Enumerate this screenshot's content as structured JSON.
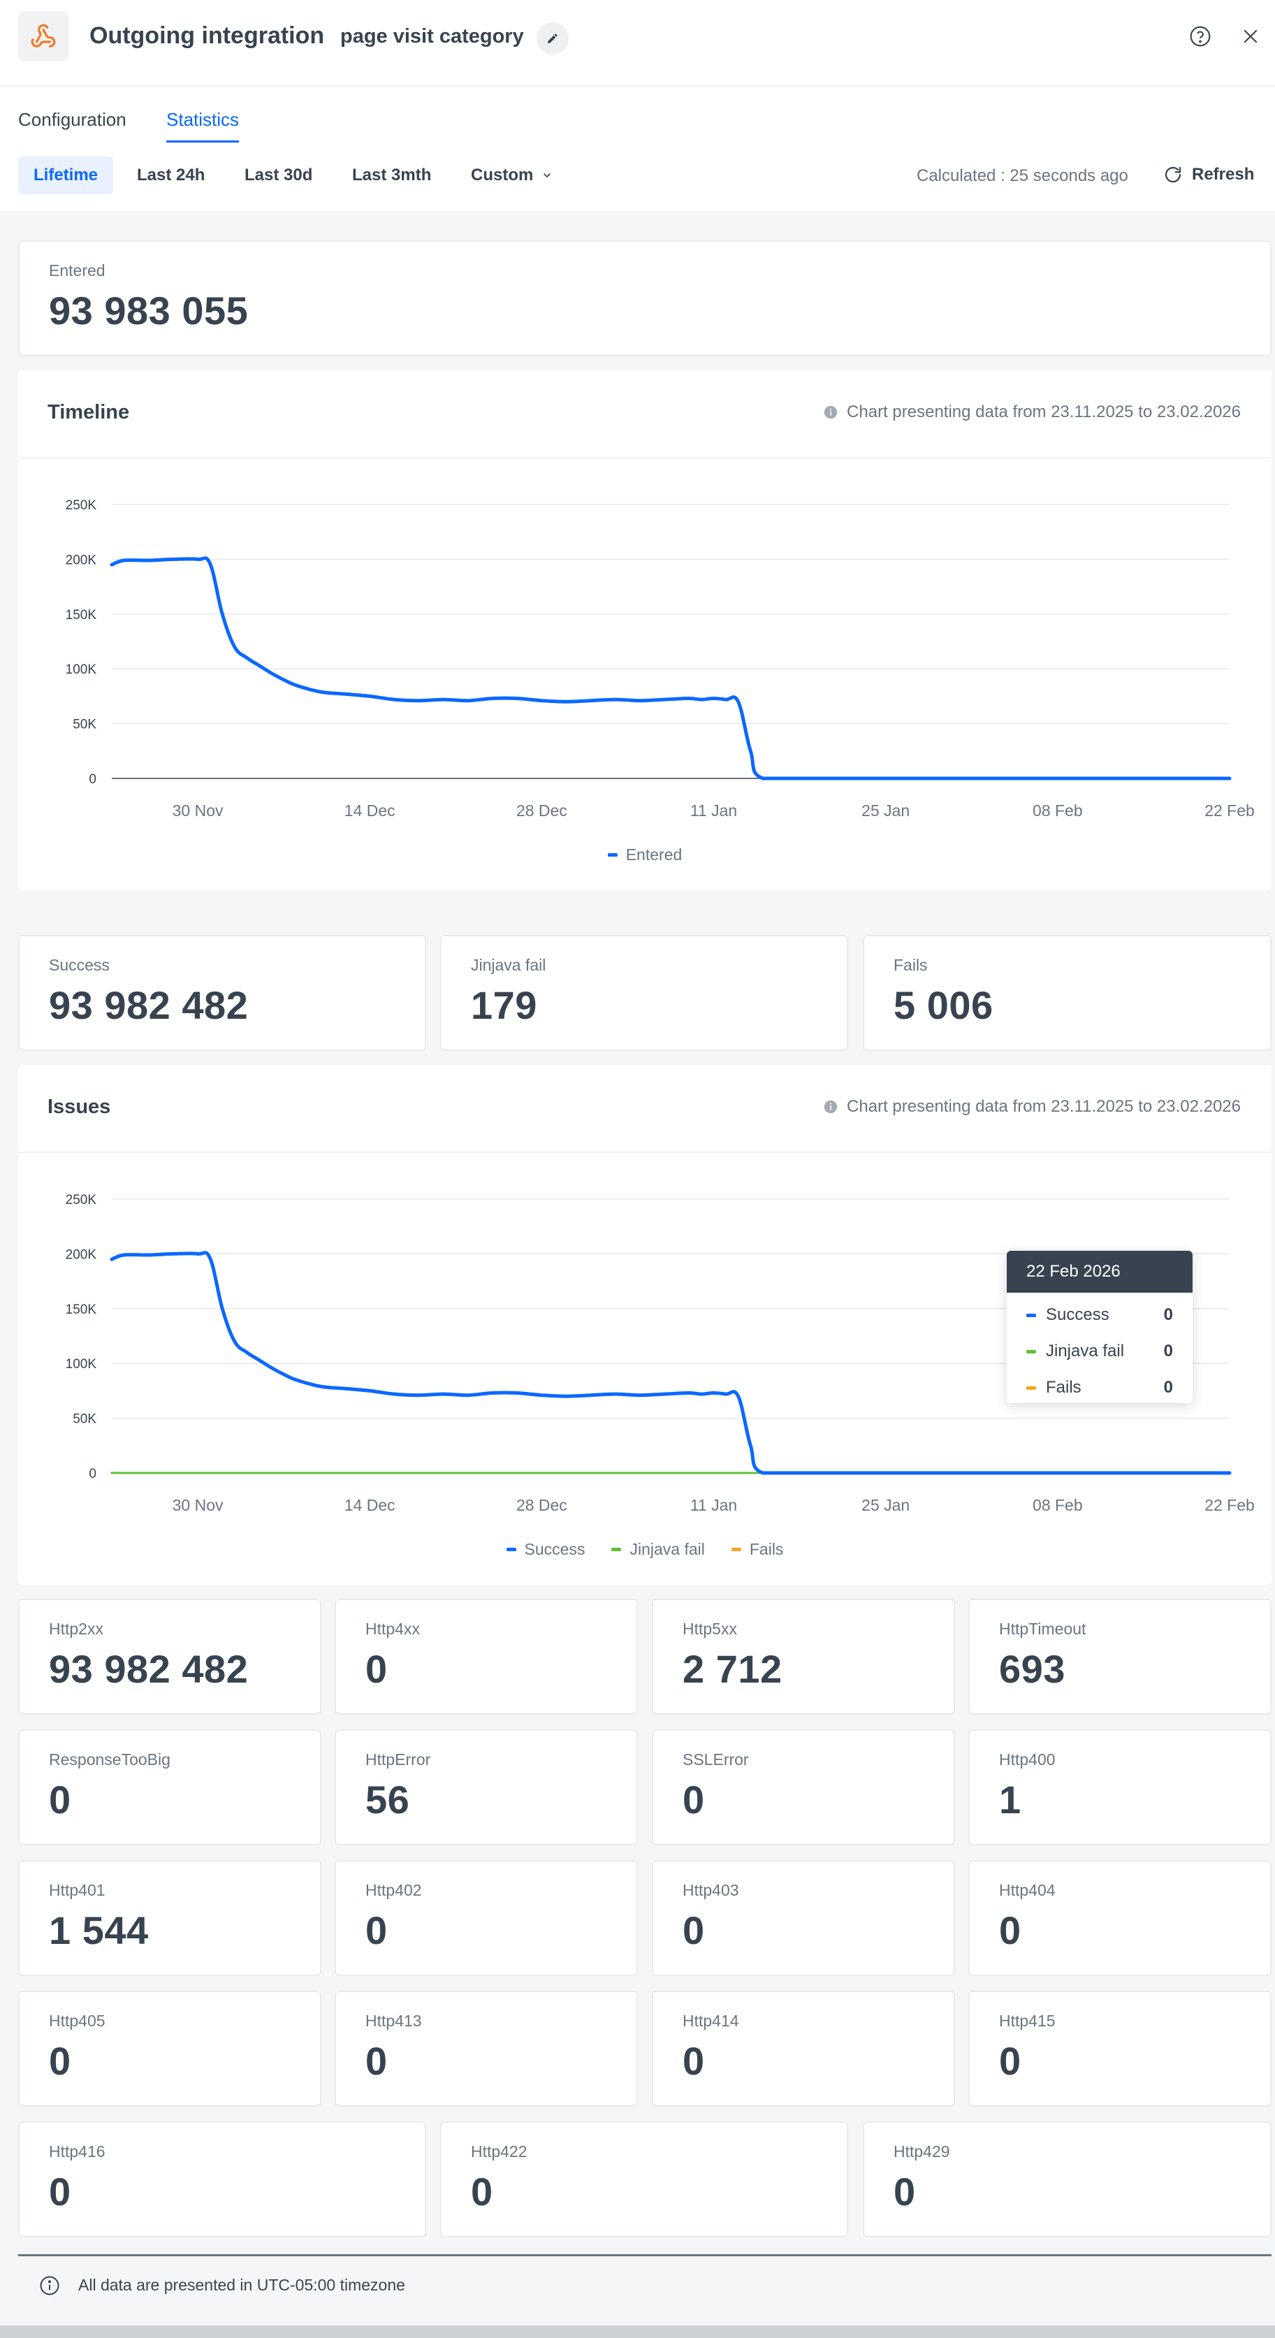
{
  "header": {
    "title": "Outgoing integration",
    "subtitle": "page visit category",
    "icons": {
      "app": "webhook-icon",
      "edit": "pencil-icon",
      "help": "help-circle-icon",
      "close": "close-icon"
    }
  },
  "tabs": [
    {
      "label": "Configuration",
      "active": false
    },
    {
      "label": "Statistics",
      "active": true
    }
  ],
  "time_ranges": [
    {
      "label": "Lifetime",
      "active": true
    },
    {
      "label": "Last 24h",
      "active": false
    },
    {
      "label": "Last 30d",
      "active": false
    },
    {
      "label": "Last 3mth",
      "active": false
    },
    {
      "label": "Custom",
      "active": false
    }
  ],
  "calculated": "Calculated : 25 seconds ago",
  "refresh_label": "Refresh",
  "entered": {
    "label": "Entered",
    "value": "93 983 055"
  },
  "timeline": {
    "title": "Timeline",
    "info": "Chart presenting data from 23.11.2025 to 23.02.2026",
    "legend": [
      "Entered"
    ]
  },
  "summary": [
    {
      "label": "Success",
      "value": "93 982 482"
    },
    {
      "label": "Jinjava fail",
      "value": "179"
    },
    {
      "label": "Fails",
      "value": "5 006"
    }
  ],
  "issues": {
    "title": "Issues",
    "info": "Chart presenting data from 23.11.2025 to 23.02.2026",
    "legend": [
      "Success",
      "Jinjava fail",
      "Fails"
    ],
    "tooltip": {
      "date": "22 Feb 2026",
      "rows": [
        {
          "name": "Success",
          "value": "0"
        },
        {
          "name": "Jinjava fail",
          "value": "0"
        },
        {
          "name": "Fails",
          "value": "0"
        }
      ]
    }
  },
  "http_stats": [
    {
      "label": "Http2xx",
      "value": "93 982 482"
    },
    {
      "label": "Http4xx",
      "value": "0"
    },
    {
      "label": "Http5xx",
      "value": "2 712"
    },
    {
      "label": "HttpTimeout",
      "value": "693"
    },
    {
      "label": "ResponseTooBig",
      "value": "0"
    },
    {
      "label": "HttpError",
      "value": "56"
    },
    {
      "label": "SSLError",
      "value": "0"
    },
    {
      "label": "Http400",
      "value": "1"
    },
    {
      "label": "Http401",
      "value": "1 544"
    },
    {
      "label": "Http402",
      "value": "0"
    },
    {
      "label": "Http403",
      "value": "0"
    },
    {
      "label": "Http404",
      "value": "0"
    },
    {
      "label": "Http405",
      "value": "0"
    },
    {
      "label": "Http413",
      "value": "0"
    },
    {
      "label": "Http414",
      "value": "0"
    },
    {
      "label": "Http415",
      "value": "0"
    },
    {
      "label": "Http416",
      "value": "0"
    },
    {
      "label": "Http422",
      "value": "0"
    },
    {
      "label": "Http429",
      "value": "0"
    }
  ],
  "footer": {
    "text": "All data are presented in UTC-05:00 timezone",
    "icon": "info-circle-icon"
  },
  "colors": {
    "accent": "#0b68ff",
    "success": "#0b68ff",
    "jinjava": "#5bc236",
    "fails": "#f5a623",
    "text": "#384350"
  },
  "chart_data": [
    {
      "type": "line",
      "title": "Timeline",
      "x_ticks": [
        "30 Nov",
        "14 Dec",
        "28 Dec",
        "11 Jan",
        "25 Jan",
        "08 Feb",
        "22 Feb"
      ],
      "y_ticks": [
        "0",
        "50K",
        "100K",
        "150K",
        "200K",
        "250K"
      ],
      "ylim": [
        0,
        250000
      ],
      "xlim": [
        "2025-11-23",
        "2026-02-22"
      ],
      "x": [
        "2025-11-23",
        "2025-11-24",
        "2025-11-26",
        "2025-11-28",
        "2025-11-30",
        "2025-12-01",
        "2025-12-02",
        "2025-12-03",
        "2025-12-04",
        "2025-12-05",
        "2025-12-06",
        "2025-12-07",
        "2025-12-08",
        "2025-12-10",
        "2025-12-12",
        "2025-12-14",
        "2025-12-16",
        "2025-12-18",
        "2025-12-20",
        "2025-12-22",
        "2025-12-24",
        "2025-12-26",
        "2025-12-28",
        "2025-12-30",
        "2026-01-01",
        "2026-01-03",
        "2026-01-05",
        "2026-01-07",
        "2026-01-09",
        "2026-01-10",
        "2026-01-11",
        "2026-01-12",
        "2026-01-13",
        "2026-01-14",
        "2026-01-15",
        "2026-01-20",
        "2026-01-25",
        "2026-02-01",
        "2026-02-08",
        "2026-02-15",
        "2026-02-22"
      ],
      "legend": "bottom",
      "grid": true,
      "series": [
        {
          "name": "Entered",
          "color": "#0b68ff",
          "values": [
            195000,
            199000,
            199000,
            200000,
            200000,
            196000,
            150000,
            120000,
            110000,
            103000,
            96000,
            90000,
            85000,
            79000,
            77000,
            75000,
            72000,
            71000,
            72000,
            71000,
            73000,
            73000,
            71000,
            70000,
            71000,
            72000,
            71000,
            72000,
            73000,
            72000,
            73000,
            72000,
            70000,
            25000,
            0,
            0,
            0,
            0,
            0,
            0,
            0
          ]
        }
      ]
    },
    {
      "type": "line",
      "title": "Issues",
      "x_ticks": [
        "30 Nov",
        "14 Dec",
        "28 Dec",
        "11 Jan",
        "25 Jan",
        "08 Feb",
        "22 Feb"
      ],
      "y_ticks": [
        "0",
        "50K",
        "100K",
        "150K",
        "200K",
        "250K"
      ],
      "ylim": [
        0,
        250000
      ],
      "xlim": [
        "2025-11-23",
        "2026-02-22"
      ],
      "x": [
        "2025-11-23",
        "2025-11-24",
        "2025-11-26",
        "2025-11-28",
        "2025-11-30",
        "2025-12-01",
        "2025-12-02",
        "2025-12-03",
        "2025-12-04",
        "2025-12-05",
        "2025-12-06",
        "2025-12-07",
        "2025-12-08",
        "2025-12-10",
        "2025-12-12",
        "2025-12-14",
        "2025-12-16",
        "2025-12-18",
        "2025-12-20",
        "2025-12-22",
        "2025-12-24",
        "2025-12-26",
        "2025-12-28",
        "2025-12-30",
        "2026-01-01",
        "2026-01-03",
        "2026-01-05",
        "2026-01-07",
        "2026-01-09",
        "2026-01-10",
        "2026-01-11",
        "2026-01-12",
        "2026-01-13",
        "2026-01-14",
        "2026-01-15",
        "2026-01-20",
        "2026-01-25",
        "2026-02-01",
        "2026-02-08",
        "2026-02-15",
        "2026-02-22"
      ],
      "legend": "bottom",
      "grid": true,
      "series": [
        {
          "name": "Success",
          "color": "#0b68ff",
          "values": [
            195000,
            199000,
            199000,
            200000,
            200000,
            196000,
            150000,
            120000,
            110000,
            103000,
            96000,
            90000,
            85000,
            79000,
            77000,
            75000,
            72000,
            71000,
            72000,
            71000,
            73000,
            73000,
            71000,
            70000,
            71000,
            72000,
            71000,
            72000,
            73000,
            72000,
            73000,
            72000,
            70000,
            25000,
            0,
            0,
            0,
            0,
            0,
            0,
            0
          ]
        },
        {
          "name": "Jinjava fail",
          "color": "#5bc236",
          "values": [
            0,
            0,
            0,
            0,
            0,
            0,
            0,
            0,
            0,
            0,
            0,
            0,
            0,
            0,
            0,
            0,
            0,
            0,
            0,
            0,
            0,
            0,
            0,
            0,
            0,
            0,
            0,
            0,
            0,
            0,
            0,
            0,
            0,
            0,
            0,
            0,
            0,
            0,
            0,
            0,
            0
          ]
        },
        {
          "name": "Fails",
          "color": "#f5a623",
          "values": [
            0,
            0,
            0,
            0,
            0,
            0,
            0,
            0,
            0,
            0,
            0,
            0,
            0,
            0,
            0,
            0,
            0,
            0,
            0,
            0,
            0,
            0,
            0,
            0,
            0,
            0,
            0,
            0,
            0,
            0,
            0,
            0,
            0,
            0,
            0,
            0,
            0,
            0,
            0,
            0,
            0
          ]
        }
      ]
    }
  ]
}
